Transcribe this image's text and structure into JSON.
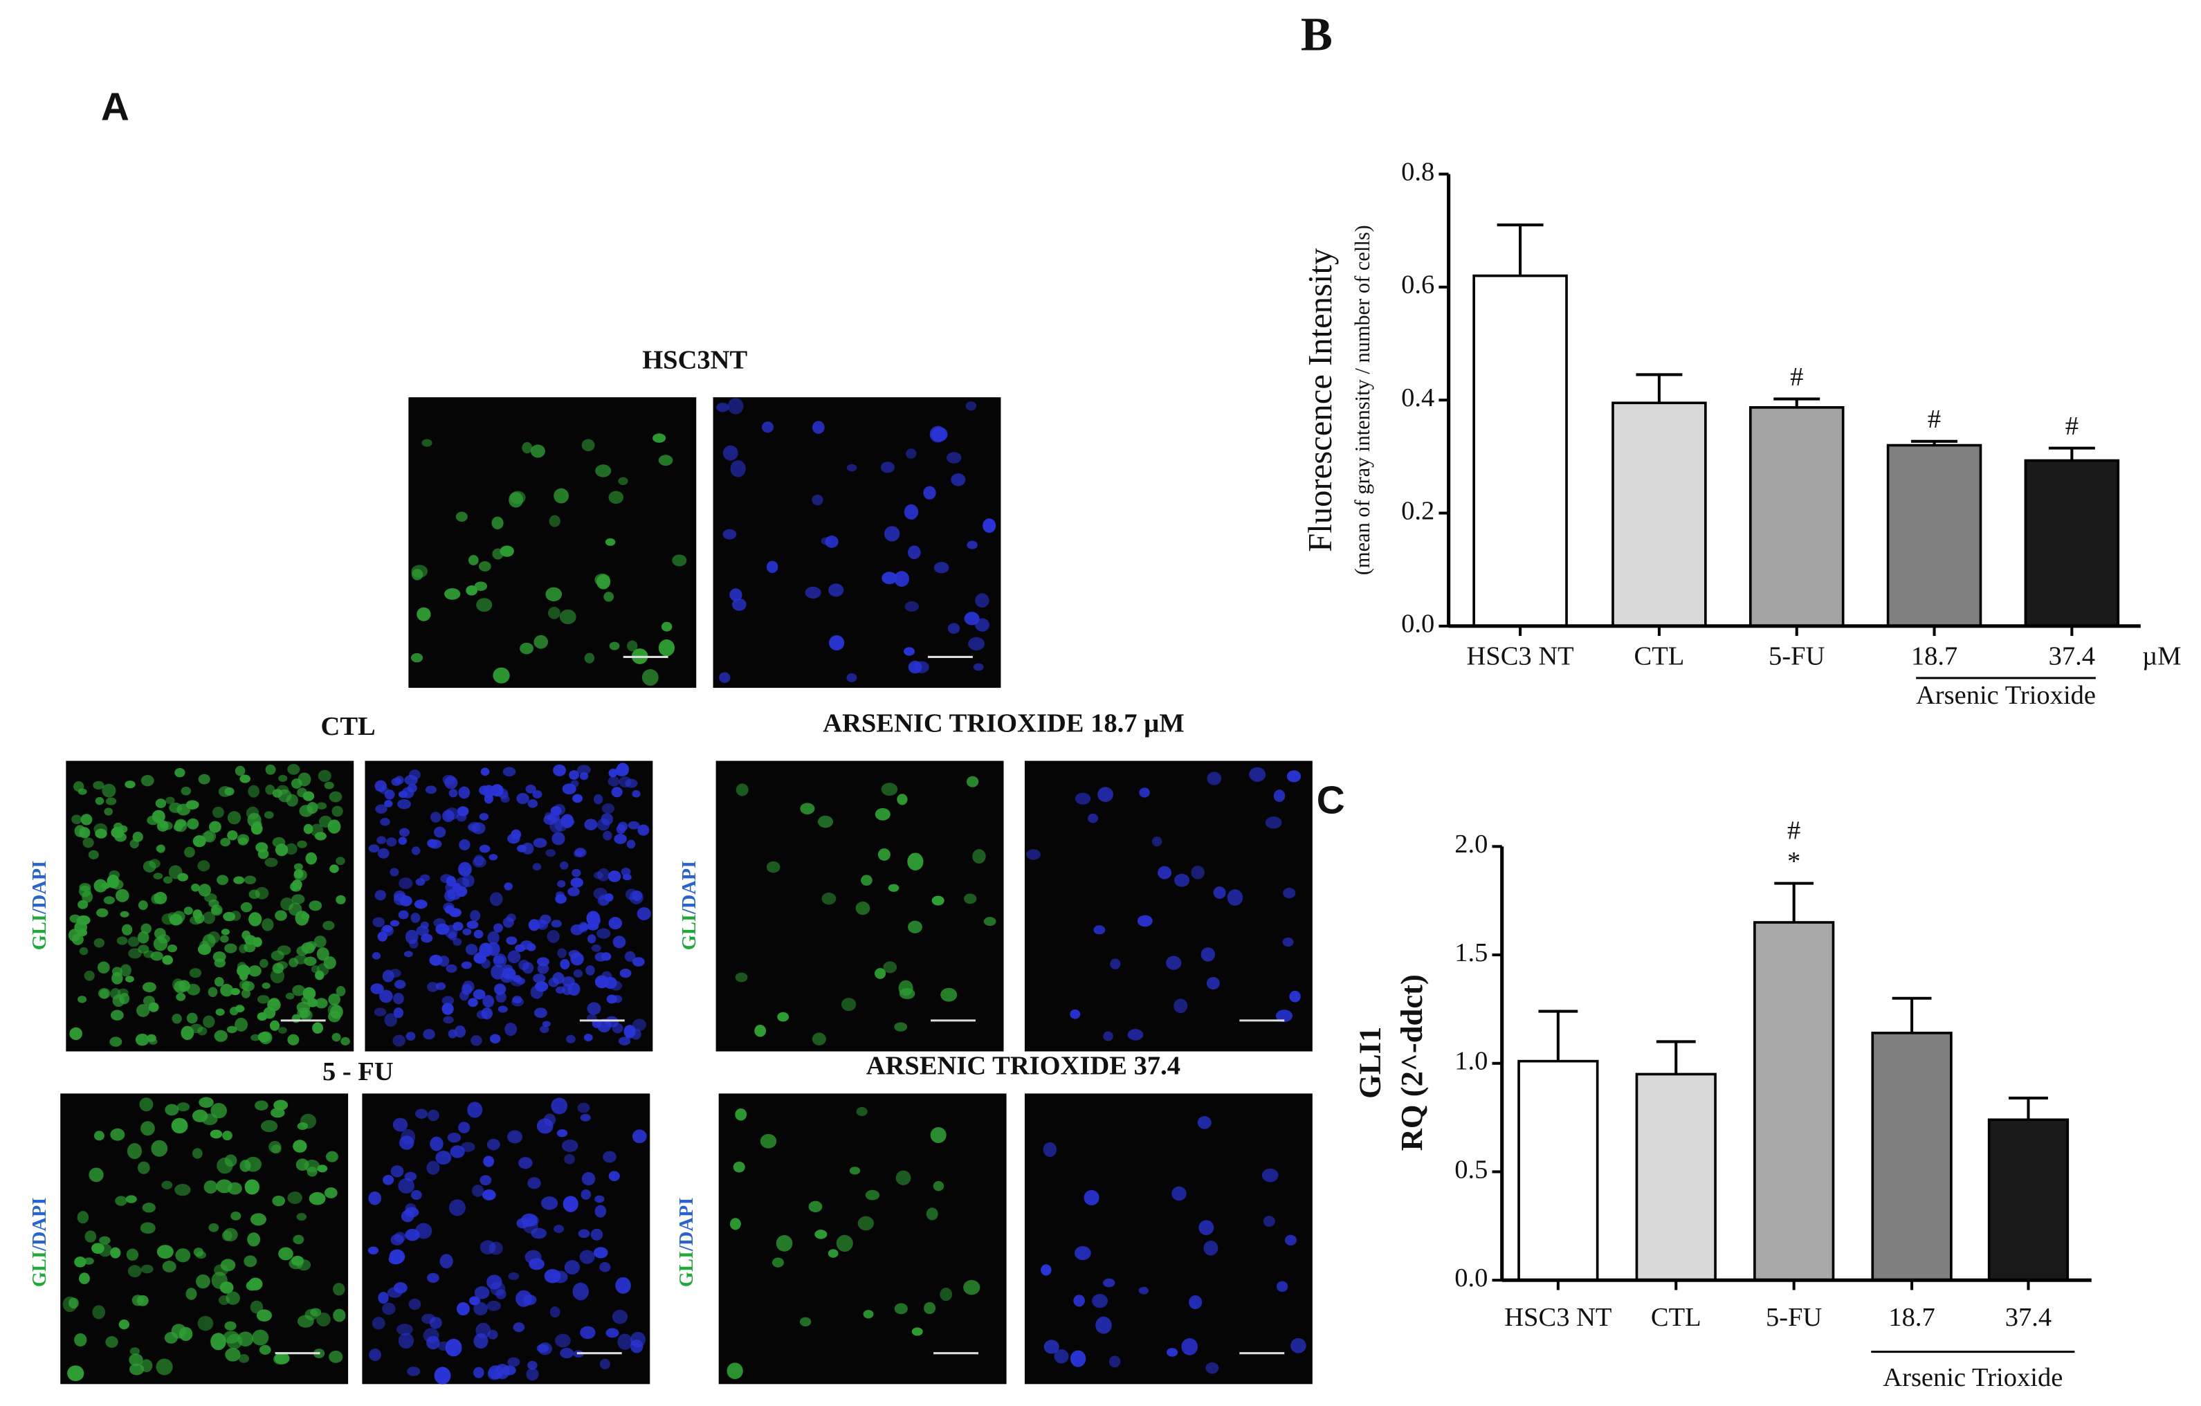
{
  "panel_a": {
    "label": "A",
    "images": [
      {
        "title": "HSC3NT"
      },
      {
        "title": "CTL"
      },
      {
        "title": "ARSENIC TRIOXIDE 18.7 µM"
      },
      {
        "title": "5 - FU"
      },
      {
        "title": "ARSENIC TRIOXIDE 37.4"
      }
    ],
    "side_label": [
      "GLI",
      "/DAPI"
    ]
  },
  "chart_data": [
    {
      "type": "bar",
      "panel": "B",
      "ylabel": [
        "Fluorescence Intensity",
        "(mean of gray intensity / number of cells)"
      ],
      "categories": [
        "HSC3 NT",
        "CTL",
        "5-FU",
        "18.7",
        "37.4"
      ],
      "unit": "µM",
      "group_label": "Arsenic Trioxide",
      "values": [
        0.62,
        0.395,
        0.387,
        0.32,
        0.293
      ],
      "errors": [
        0.09,
        0.05,
        0.015,
        0.007,
        0.022
      ],
      "colors": [
        "#ffffff",
        "#d9d9d9",
        "#a3a3a3",
        "#808080",
        "#1a1a1a"
      ],
      "annotations": [
        [],
        [],
        [
          "#"
        ],
        [
          "#"
        ],
        [
          "#"
        ]
      ],
      "ylim": [
        0,
        0.8
      ],
      "yticks": [
        {
          "value": 0,
          "label": "0.0"
        },
        0.2,
        0.4,
        0.6,
        0.8
      ]
    },
    {
      "type": "bar",
      "panel": "C",
      "ylabel": [
        "GLI1",
        "RQ (2^-ddct)"
      ],
      "categories": [
        "HSC3 NT",
        "CTL",
        "5-FU",
        "18.7",
        "37.4"
      ],
      "group_label": "Arsenic Trioxide",
      "values": [
        1.01,
        0.95,
        1.65,
        1.14,
        0.74
      ],
      "errors": [
        0.23,
        0.15,
        0.18,
        0.16,
        0.1
      ],
      "colors": [
        "#ffffff",
        "#d9d9d9",
        "#a8a8a8",
        "#7f7f7f",
        "#1a1a1a"
      ],
      "annotations": [
        [],
        [],
        [
          "#",
          "*"
        ],
        [],
        []
      ],
      "ylim": [
        0,
        2
      ],
      "yticks": [
        {
          "value": 0,
          "label": "0.0"
        },
        0.5,
        {
          "value": 1,
          "label": "1.0"
        },
        1.5,
        {
          "value": 2,
          "label": "2.0"
        }
      ]
    }
  ]
}
